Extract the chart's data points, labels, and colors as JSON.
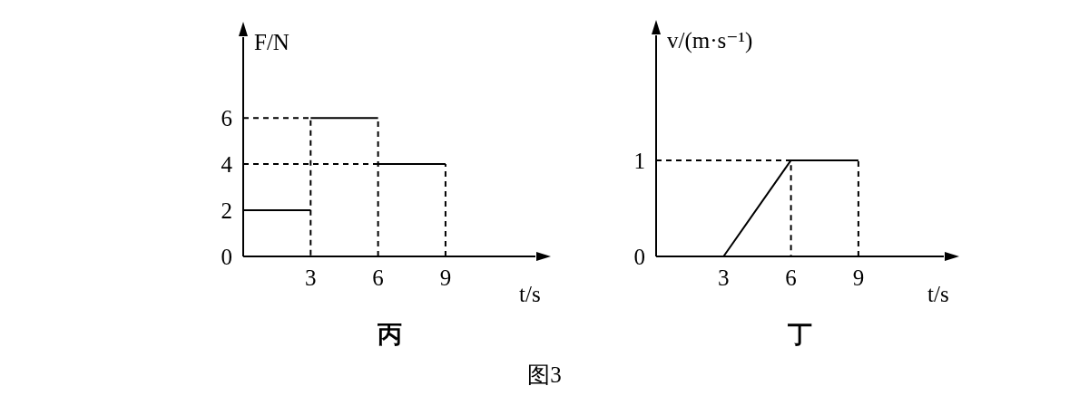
{
  "chart_data": [
    {
      "type": "line",
      "title": "丙",
      "xlabel": "t/s",
      "ylabel": "F/N",
      "xlim": [
        0,
        13
      ],
      "ylim": [
        0,
        9.5
      ],
      "xticks": [
        3,
        6,
        9
      ],
      "yticks": [
        0,
        2,
        4,
        6
      ],
      "annotations": [
        "图3"
      ],
      "series": [
        {
          "color": "#000000",
          "x": [
            0,
            3
          ],
          "values": [
            2,
            2
          ]
        },
        {
          "color": "#000000",
          "x": [
            3,
            6
          ],
          "values": [
            6,
            6
          ]
        },
        {
          "color": "#000000",
          "x": [
            6,
            9
          ],
          "values": [
            4,
            4
          ]
        },
        {
          "color": "#000000",
          "line_style": "dashed",
          "x": [
            0,
            3,
            3
          ],
          "values": [
            6,
            6,
            0
          ]
        },
        {
          "color": "#000000",
          "line_style": "dashed",
          "x": [
            0,
            6
          ],
          "values": [
            4,
            4
          ]
        },
        {
          "color": "#000000",
          "line_style": "dashed",
          "x": [
            6,
            6
          ],
          "values": [
            0,
            6
          ]
        },
        {
          "color": "#000000",
          "line_style": "dashed",
          "x": [
            9,
            9
          ],
          "values": [
            0,
            4
          ]
        }
      ]
    },
    {
      "type": "line",
      "title": "丁",
      "xlabel": "t/s",
      "ylabel": "v/(m·s⁻¹)",
      "xlim": [
        0,
        12.8
      ],
      "ylim": [
        0,
        2.3
      ],
      "xticks": [
        3,
        6,
        9
      ],
      "yticks": [
        0,
        1
      ],
      "series": [
        {
          "color": "#000000",
          "x": [
            3,
            6,
            9
          ],
          "values": [
            0,
            1,
            1
          ]
        },
        {
          "color": "#000000",
          "line_style": "dashed",
          "x": [
            0,
            6,
            6
          ],
          "values": [
            1,
            1,
            0
          ]
        },
        {
          "color": "#000000",
          "line_style": "dashed",
          "x": [
            9,
            9
          ],
          "values": [
            0,
            1
          ]
        }
      ]
    }
  ]
}
